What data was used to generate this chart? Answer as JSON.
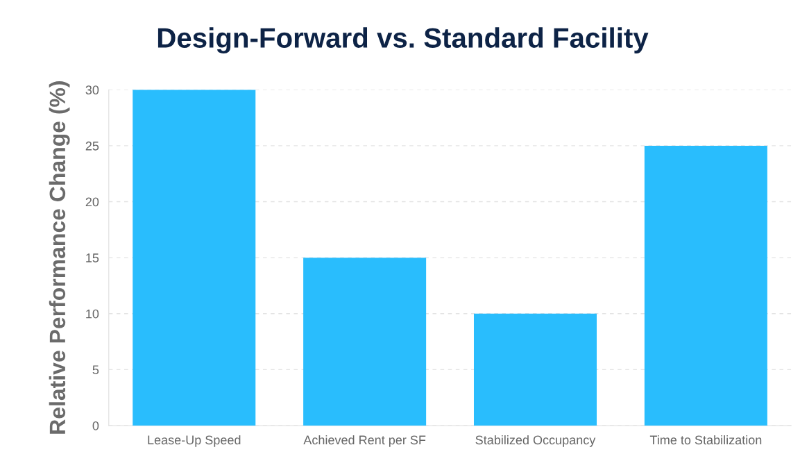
{
  "chart_data": {
    "type": "bar",
    "title": "Design-Forward vs. Standard Facility",
    "ylabel": "Relative Performance Change (%)",
    "categories": [
      "Lease-Up Speed",
      "Achieved Rent per SF",
      "Stabilized Occupancy",
      "Time to Stabilization"
    ],
    "values": [
      30,
      15,
      10,
      25
    ],
    "color": "#29bdfd",
    "ylim": [
      0,
      30
    ],
    "yticks": [
      0,
      5,
      10,
      15,
      20,
      25,
      30
    ],
    "grid": "y",
    "legend": false
  }
}
